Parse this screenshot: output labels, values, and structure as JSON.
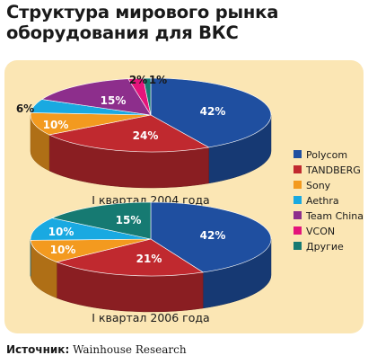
{
  "title_line1": "Структура мирового рынка",
  "title_line2": "оборудования для ВКС",
  "source_label": "Источник:",
  "source_value": "Wainhouse Research",
  "colors": {
    "panel": "#fbe6b4",
    "Polycom": "#1f4fa0",
    "TANDBERG": "#c0292f",
    "Sony": "#f39a1f",
    "Aethra": "#19a9e1",
    "Team China": "#8d2e8c",
    "VCON": "#e4147b",
    "Другие": "#167a72"
  },
  "chart_data": [
    {
      "type": "pie",
      "title": "I квартал 2004 года",
      "slices": [
        {
          "label": "Polycom",
          "value": 42
        },
        {
          "label": "TANDBERG",
          "value": 24
        },
        {
          "label": "Sony",
          "value": 10
        },
        {
          "label": "Aethra",
          "value": 6
        },
        {
          "label": "Team China",
          "value": 15
        },
        {
          "label": "VCON",
          "value": 2
        },
        {
          "label": "Другие",
          "value": 1
        }
      ]
    },
    {
      "type": "pie",
      "title": "I квартал 2006 года",
      "slices": [
        {
          "label": "Polycom",
          "value": 42
        },
        {
          "label": "TANDBERG",
          "value": 21
        },
        {
          "label": "Sony",
          "value": 10
        },
        {
          "label": "Aethra",
          "value": 10
        },
        {
          "label": "Другие",
          "value": 15
        }
      ]
    }
  ],
  "legend": [
    "Polycom",
    "TANDBERG",
    "Sony",
    "Aethra",
    "Team China",
    "VCON",
    "Другие"
  ]
}
